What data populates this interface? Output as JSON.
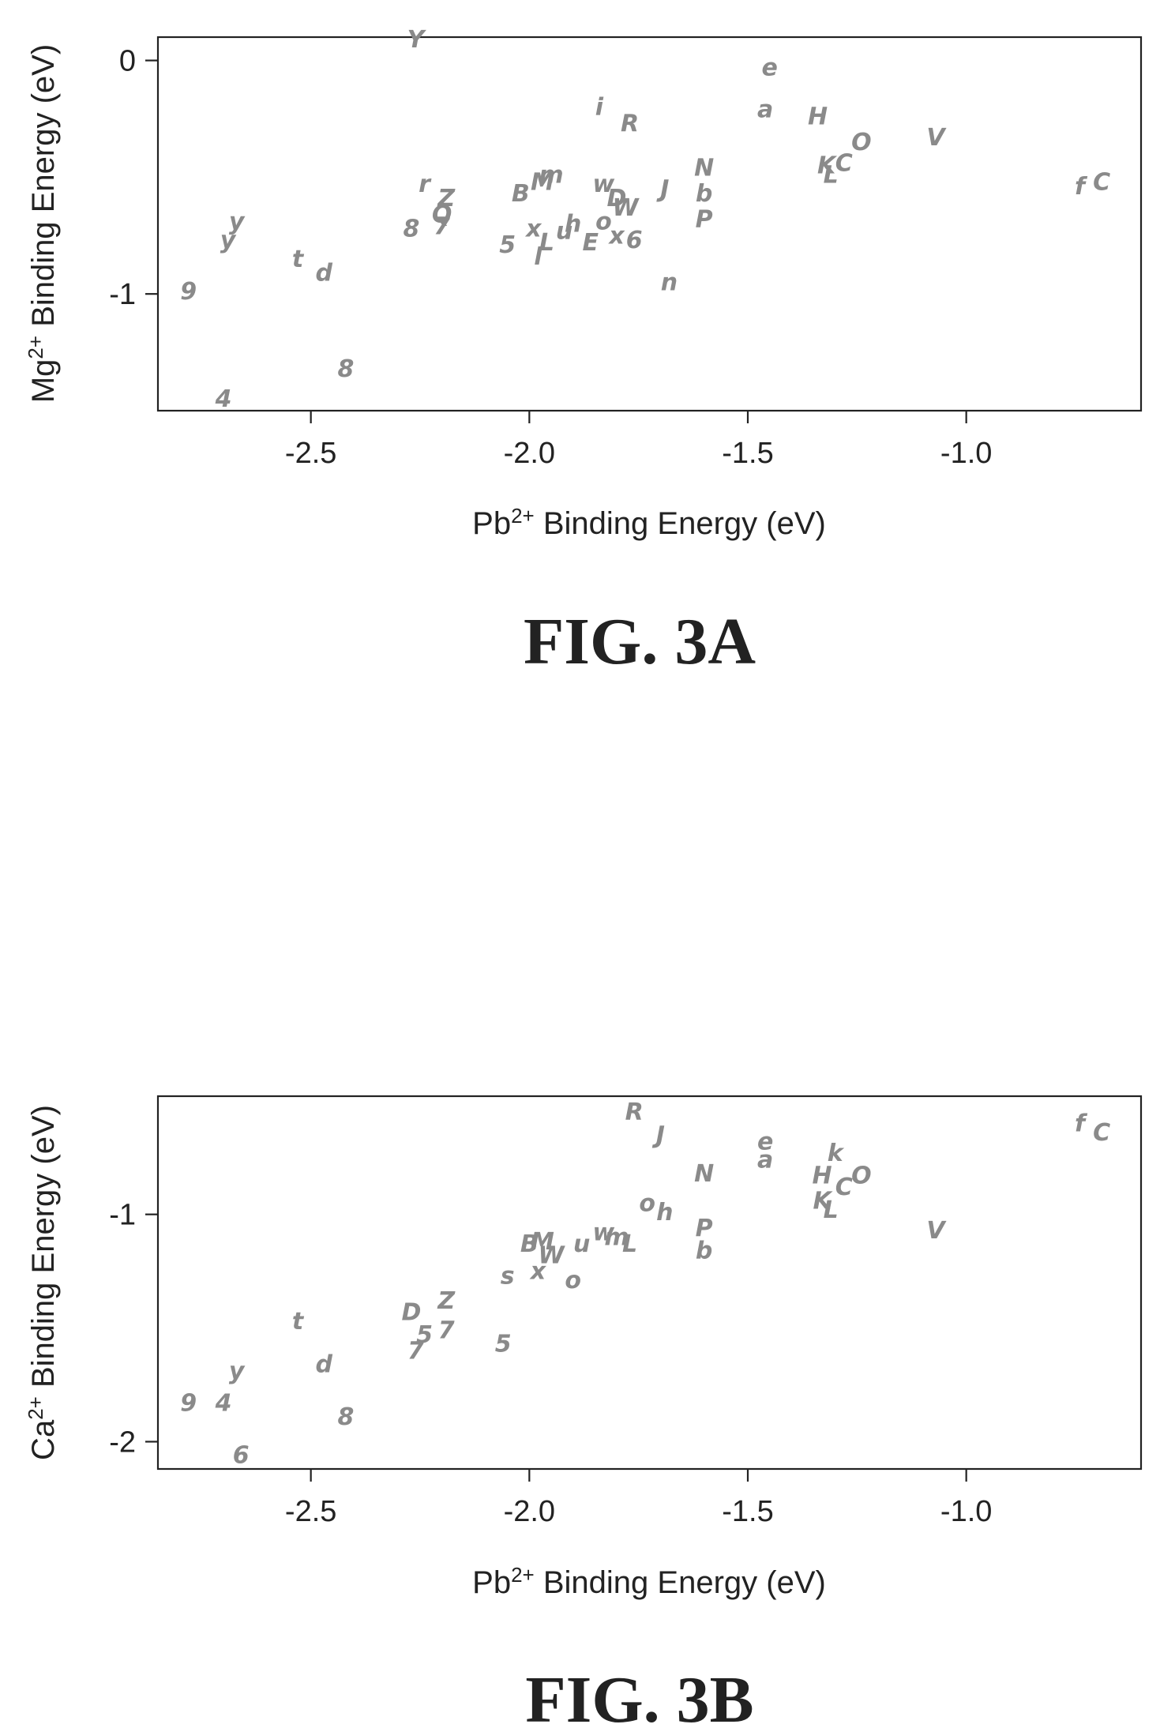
{
  "chart_data": [
    {
      "type": "scatter",
      "xlabel": "Pb2+ Binding Energy (eV)",
      "ylabel": "Mg2+ Binding Energy (eV)",
      "xlabel_parts": [
        "Pb",
        "2+",
        " Binding Energy (eV)"
      ],
      "ylabel_parts": [
        "Mg",
        "2+",
        " Binding Energy (eV)"
      ],
      "xlim": [
        -2.85,
        -0.6
      ],
      "ylim": [
        -1.5,
        0.1
      ],
      "xticks": [
        -2.5,
        -2.0,
        -1.5,
        -1.0
      ],
      "xtick_labels": [
        "-2.5",
        "-2.0",
        "-1.5",
        "-1.0"
      ],
      "yticks": [
        0,
        -1
      ],
      "ytick_labels": [
        "0",
        "-1"
      ],
      "grid": false,
      "caption": "FIG. 3A",
      "points": [
        {
          "x": -2.26,
          "y": 0.09,
          "label": "Y"
        },
        {
          "x": -2.78,
          "y": -0.99,
          "label": "9"
        },
        {
          "x": -2.7,
          "y": -1.45,
          "label": "4"
        },
        {
          "x": -2.67,
          "y": -0.69,
          "label": "y"
        },
        {
          "x": -2.69,
          "y": -0.77,
          "label": "y"
        },
        {
          "x": -2.53,
          "y": -0.85,
          "label": "t"
        },
        {
          "x": -2.47,
          "y": -0.91,
          "label": "d"
        },
        {
          "x": -2.42,
          "y": -1.32,
          "label": "8"
        },
        {
          "x": -2.24,
          "y": -0.53,
          "label": "r"
        },
        {
          "x": -2.27,
          "y": -0.72,
          "label": "8"
        },
        {
          "x": -2.19,
          "y": -0.59,
          "label": "Z"
        },
        {
          "x": -2.2,
          "y": -0.71,
          "label": "7"
        },
        {
          "x": -2.2,
          "y": -0.66,
          "label": "Q"
        },
        {
          "x": -2.05,
          "y": -0.79,
          "label": "5"
        },
        {
          "x": -2.02,
          "y": -0.57,
          "label": "B"
        },
        {
          "x": -1.97,
          "y": -0.52,
          "label": "M"
        },
        {
          "x": -1.95,
          "y": -0.49,
          "label": "m"
        },
        {
          "x": -1.99,
          "y": -0.72,
          "label": "x"
        },
        {
          "x": -1.96,
          "y": -0.78,
          "label": "L"
        },
        {
          "x": -1.98,
          "y": -0.84,
          "label": "l"
        },
        {
          "x": -1.92,
          "y": -0.73,
          "label": "u"
        },
        {
          "x": -1.9,
          "y": -0.7,
          "label": "h"
        },
        {
          "x": -1.86,
          "y": -0.78,
          "label": "E"
        },
        {
          "x": -1.83,
          "y": -0.69,
          "label": "o"
        },
        {
          "x": -1.83,
          "y": -0.53,
          "label": "w"
        },
        {
          "x": -1.8,
          "y": -0.59,
          "label": "D"
        },
        {
          "x": -1.78,
          "y": -0.63,
          "label": "W"
        },
        {
          "x": -1.8,
          "y": -0.75,
          "label": "x"
        },
        {
          "x": -1.76,
          "y": -0.77,
          "label": "6"
        },
        {
          "x": -1.84,
          "y": -0.2,
          "label": "i"
        },
        {
          "x": -1.77,
          "y": -0.27,
          "label": "R"
        },
        {
          "x": -1.69,
          "y": -0.55,
          "label": "J"
        },
        {
          "x": -1.68,
          "y": -0.95,
          "label": "n"
        },
        {
          "x": -1.6,
          "y": -0.46,
          "label": "N"
        },
        {
          "x": -1.6,
          "y": -0.57,
          "label": "b"
        },
        {
          "x": -1.6,
          "y": -0.68,
          "label": "P"
        },
        {
          "x": -1.45,
          "y": -0.03,
          "label": "e"
        },
        {
          "x": -1.46,
          "y": -0.21,
          "label": "a"
        },
        {
          "x": -1.34,
          "y": -0.24,
          "label": "H"
        },
        {
          "x": -1.32,
          "y": -0.45,
          "label": "K"
        },
        {
          "x": -1.31,
          "y": -0.49,
          "label": "L"
        },
        {
          "x": -1.28,
          "y": -0.44,
          "label": "C"
        },
        {
          "x": -1.24,
          "y": -0.35,
          "label": "O"
        },
        {
          "x": -1.07,
          "y": -0.33,
          "label": "V"
        },
        {
          "x": -0.74,
          "y": -0.54,
          "label": "f"
        },
        {
          "x": -0.69,
          "y": -0.52,
          "label": "C"
        }
      ]
    },
    {
      "type": "scatter",
      "xlabel": "Pb2+ Binding Energy (eV)",
      "ylabel": "Ca2+ Binding Energy (eV)",
      "xlabel_parts": [
        "Pb",
        "2+",
        " Binding Energy (eV)"
      ],
      "ylabel_parts": [
        "Ca",
        "2+",
        " Binding Energy (eV)"
      ],
      "xlim": [
        -2.85,
        -0.6
      ],
      "ylim": [
        -2.12,
        -0.48
      ],
      "xticks": [
        -2.5,
        -2.0,
        -1.5,
        -1.0
      ],
      "xtick_labels": [
        "-2.5",
        "-2.0",
        "-1.5",
        "-1.0"
      ],
      "yticks": [
        -1,
        -2
      ],
      "ytick_labels": [
        "-1",
        "-2"
      ],
      "grid": false,
      "caption": "FIG. 3B",
      "points": [
        {
          "x": -2.78,
          "y": -1.83,
          "label": "9"
        },
        {
          "x": -2.7,
          "y": -1.83,
          "label": "4"
        },
        {
          "x": -2.67,
          "y": -1.69,
          "label": "y"
        },
        {
          "x": -2.66,
          "y": -2.06,
          "label": "6"
        },
        {
          "x": -2.53,
          "y": -1.47,
          "label": "t"
        },
        {
          "x": -2.47,
          "y": -1.66,
          "label": "d"
        },
        {
          "x": -2.42,
          "y": -1.89,
          "label": "8"
        },
        {
          "x": -2.27,
          "y": -1.43,
          "label": "D"
        },
        {
          "x": -2.26,
          "y": -1.6,
          "label": "7"
        },
        {
          "x": -2.24,
          "y": -1.53,
          "label": "5"
        },
        {
          "x": -2.19,
          "y": -1.38,
          "label": "Z"
        },
        {
          "x": -2.19,
          "y": -1.51,
          "label": "7"
        },
        {
          "x": -2.06,
          "y": -1.57,
          "label": "5"
        },
        {
          "x": -2.05,
          "y": -1.27,
          "label": "s"
        },
        {
          "x": -2.0,
          "y": -1.13,
          "label": "B"
        },
        {
          "x": -1.97,
          "y": -1.12,
          "label": "M"
        },
        {
          "x": -1.98,
          "y": -1.25,
          "label": "x"
        },
        {
          "x": -1.95,
          "y": -1.18,
          "label": "W"
        },
        {
          "x": -1.9,
          "y": -1.29,
          "label": "o"
        },
        {
          "x": -1.88,
          "y": -1.13,
          "label": "u"
        },
        {
          "x": -1.83,
          "y": -1.08,
          "label": "w"
        },
        {
          "x": -1.8,
          "y": -1.1,
          "label": "m"
        },
        {
          "x": -1.77,
          "y": -1.13,
          "label": "L"
        },
        {
          "x": -1.76,
          "y": -0.55,
          "label": "R"
        },
        {
          "x": -1.73,
          "y": -0.95,
          "label": "o"
        },
        {
          "x": -1.7,
          "y": -0.65,
          "label": "J"
        },
        {
          "x": -1.69,
          "y": -0.99,
          "label": "h"
        },
        {
          "x": -1.6,
          "y": -0.82,
          "label": "N"
        },
        {
          "x": -1.6,
          "y": -1.06,
          "label": "P"
        },
        {
          "x": -1.6,
          "y": -1.16,
          "label": "b"
        },
        {
          "x": -1.46,
          "y": -0.68,
          "label": "e"
        },
        {
          "x": -1.46,
          "y": -0.76,
          "label": "a"
        },
        {
          "x": -1.33,
          "y": -0.83,
          "label": "H"
        },
        {
          "x": -1.3,
          "y": -0.73,
          "label": "k"
        },
        {
          "x": -1.33,
          "y": -0.94,
          "label": "K"
        },
        {
          "x": -1.31,
          "y": -0.98,
          "label": "L"
        },
        {
          "x": -1.28,
          "y": -0.88,
          "label": "C"
        },
        {
          "x": -1.24,
          "y": -0.83,
          "label": "O"
        },
        {
          "x": -1.07,
          "y": -1.07,
          "label": "V"
        },
        {
          "x": -0.74,
          "y": -0.6,
          "label": "f"
        },
        {
          "x": -0.69,
          "y": -0.64,
          "label": "C"
        }
      ]
    }
  ]
}
